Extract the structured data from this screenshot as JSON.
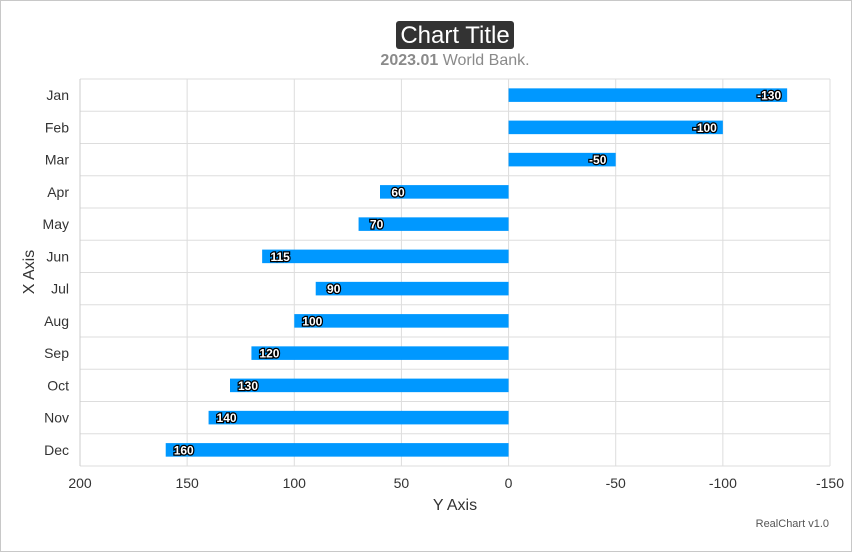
{
  "chart_data": {
    "type": "bar",
    "orientation": "horizontal",
    "title": "Chart Title",
    "subtitle_strong": "2023.01",
    "subtitle_rest": " World Bank.",
    "xlabel": "X Axis",
    "ylabel": "Y Axis",
    "categories": [
      "Jan",
      "Feb",
      "Mar",
      "Apr",
      "May",
      "Jun",
      "Jul",
      "Aug",
      "Sep",
      "Oct",
      "Nov",
      "Dec"
    ],
    "values": [
      -130,
      -100,
      -50,
      60,
      70,
      115,
      90,
      100,
      120,
      130,
      140,
      160
    ],
    "value_axis": {
      "min": -150,
      "max": 200,
      "reversed": true,
      "ticks": [
        200,
        150,
        100,
        50,
        0,
        -50,
        -100,
        -150
      ]
    },
    "grid": true,
    "bar_color": "#0098ff",
    "title_background": "#333333",
    "credit": "RealChart v1.0"
  }
}
